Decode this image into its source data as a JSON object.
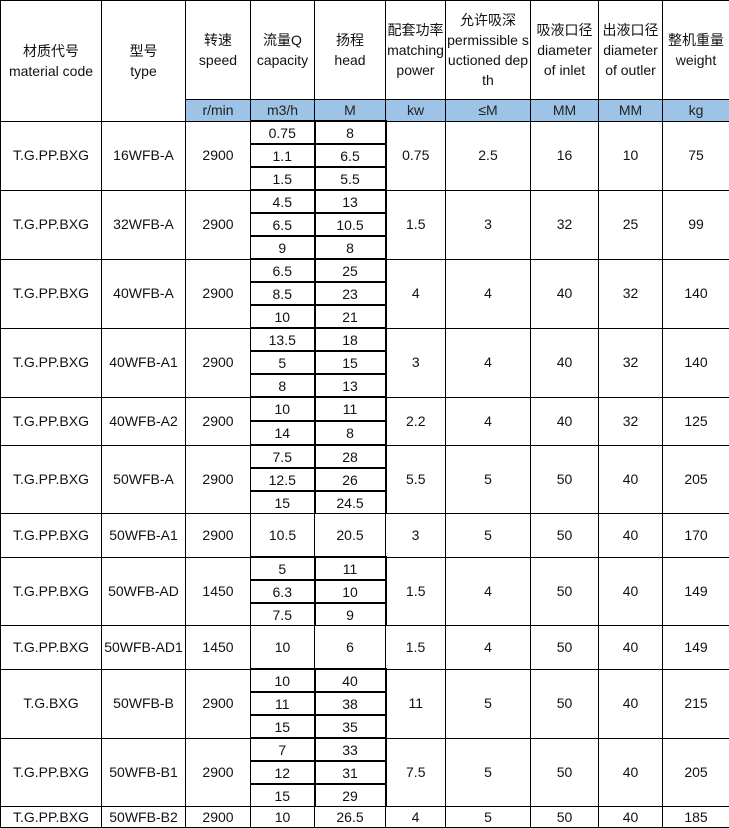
{
  "headers": [
    {
      "cn": "材质代号",
      "en": "material code"
    },
    {
      "cn": "型号",
      "en": "type"
    },
    {
      "cn": "转速",
      "en": "speed"
    },
    {
      "cn": "流量Q",
      "en": "capacity"
    },
    {
      "cn": "扬程",
      "en": "head"
    },
    {
      "cn": "配套功率",
      "en": "matching power"
    },
    {
      "cn": "允许吸深",
      "en": "permissible suctioned depth"
    },
    {
      "cn": "吸液口径",
      "en": "diameter of inlet"
    },
    {
      "cn": "出液口径",
      "en": "diameter of outler"
    },
    {
      "cn": "整机重量",
      "en": "weight"
    }
  ],
  "units": [
    "r/min",
    "m3/h",
    "M",
    "kw",
    "≤M",
    "MM",
    "MM",
    "kg"
  ],
  "rows": [
    {
      "material": "T.G.PP.BXG",
      "type": "16WFB-A",
      "speed": "2900",
      "flow": [
        "0.75",
        "1.1",
        "1.5"
      ],
      "head": [
        "8",
        "6.5",
        "5.5"
      ],
      "power": "0.75",
      "suction": "2.5",
      "inlet": "16",
      "outlet": "10",
      "weight": "75"
    },
    {
      "material": "T.G.PP.BXG",
      "type": "32WFB-A",
      "speed": "2900",
      "flow": [
        "4.5",
        "6.5",
        "9"
      ],
      "head": [
        "13",
        "10.5",
        "8"
      ],
      "power": "1.5",
      "suction": "3",
      "inlet": "32",
      "outlet": "25",
      "weight": "99"
    },
    {
      "material": "T.G.PP.BXG",
      "type": "40WFB-A",
      "speed": "2900",
      "flow": [
        "6.5",
        "8.5",
        "10"
      ],
      "head": [
        "25",
        "23",
        "21"
      ],
      "power": "4",
      "suction": "4",
      "inlet": "40",
      "outlet": "32",
      "weight": "140"
    },
    {
      "material": "T.G.PP.BXG",
      "type": "40WFB-A1",
      "speed": "2900",
      "flow": [
        "13.5",
        "5",
        "8"
      ],
      "head": [
        "18",
        "15",
        "13"
      ],
      "power": "3",
      "suction": "4",
      "inlet": "40",
      "outlet": "32",
      "weight": "140"
    },
    {
      "material": "T.G.PP.BXG",
      "type": "40WFB-A2",
      "speed": "2900",
      "flow": [
        "10",
        "14"
      ],
      "head": [
        "11",
        "8"
      ],
      "power": "2.2",
      "suction": "4",
      "inlet": "40",
      "outlet": "32",
      "weight": "125"
    },
    {
      "material": "T.G.PP.BXG",
      "type": "50WFB-A",
      "speed": "2900",
      "flow": [
        "7.5",
        "12.5",
        "15"
      ],
      "head": [
        "28",
        "26",
        "24.5"
      ],
      "power": "5.5",
      "suction": "5",
      "inlet": "50",
      "outlet": "40",
      "weight": "205"
    },
    {
      "material": "T.G.PP.BXG",
      "type": "50WFB-A1",
      "speed": "2900",
      "flow": [
        "10.5"
      ],
      "head": [
        "20.5"
      ],
      "power": "3",
      "suction": "5",
      "inlet": "50",
      "outlet": "40",
      "weight": "170"
    },
    {
      "material": "T.G.PP.BXG",
      "type": "50WFB-AD",
      "speed": "1450",
      "flow": [
        "5",
        "6.3",
        "7.5"
      ],
      "head": [
        "11",
        "10",
        "9"
      ],
      "power": "1.5",
      "suction": "4",
      "inlet": "50",
      "outlet": "40",
      "weight": "149"
    },
    {
      "material": "T.G.PP.BXG",
      "type": "50WFB-AD1",
      "speed": "1450",
      "flow": [
        "10"
      ],
      "head": [
        "6"
      ],
      "power": "1.5",
      "suction": "4",
      "inlet": "50",
      "outlet": "40",
      "weight": "149"
    },
    {
      "material": "T.G.BXG",
      "type": "50WFB-B",
      "speed": "2900",
      "flow": [
        "10",
        "11",
        "15"
      ],
      "head": [
        "40",
        "38",
        "35"
      ],
      "power": "11",
      "suction": "5",
      "inlet": "50",
      "outlet": "40",
      "weight": "215"
    },
    {
      "material": "T.G.PP.BXG",
      "type": "50WFB-B1",
      "speed": "2900",
      "flow": [
        "7",
        "12",
        "15"
      ],
      "head": [
        "33",
        "31",
        "29"
      ],
      "power": "7.5",
      "suction": "5",
      "inlet": "50",
      "outlet": "40",
      "weight": "205"
    },
    {
      "material": "T.G.PP.BXG",
      "type": "50WFB-B2",
      "speed": "2900",
      "flow": [
        "10"
      ],
      "head": [
        "26.5"
      ],
      "power": "4",
      "suction": "5",
      "inlet": "50",
      "outlet": "40",
      "weight": "185"
    }
  ]
}
